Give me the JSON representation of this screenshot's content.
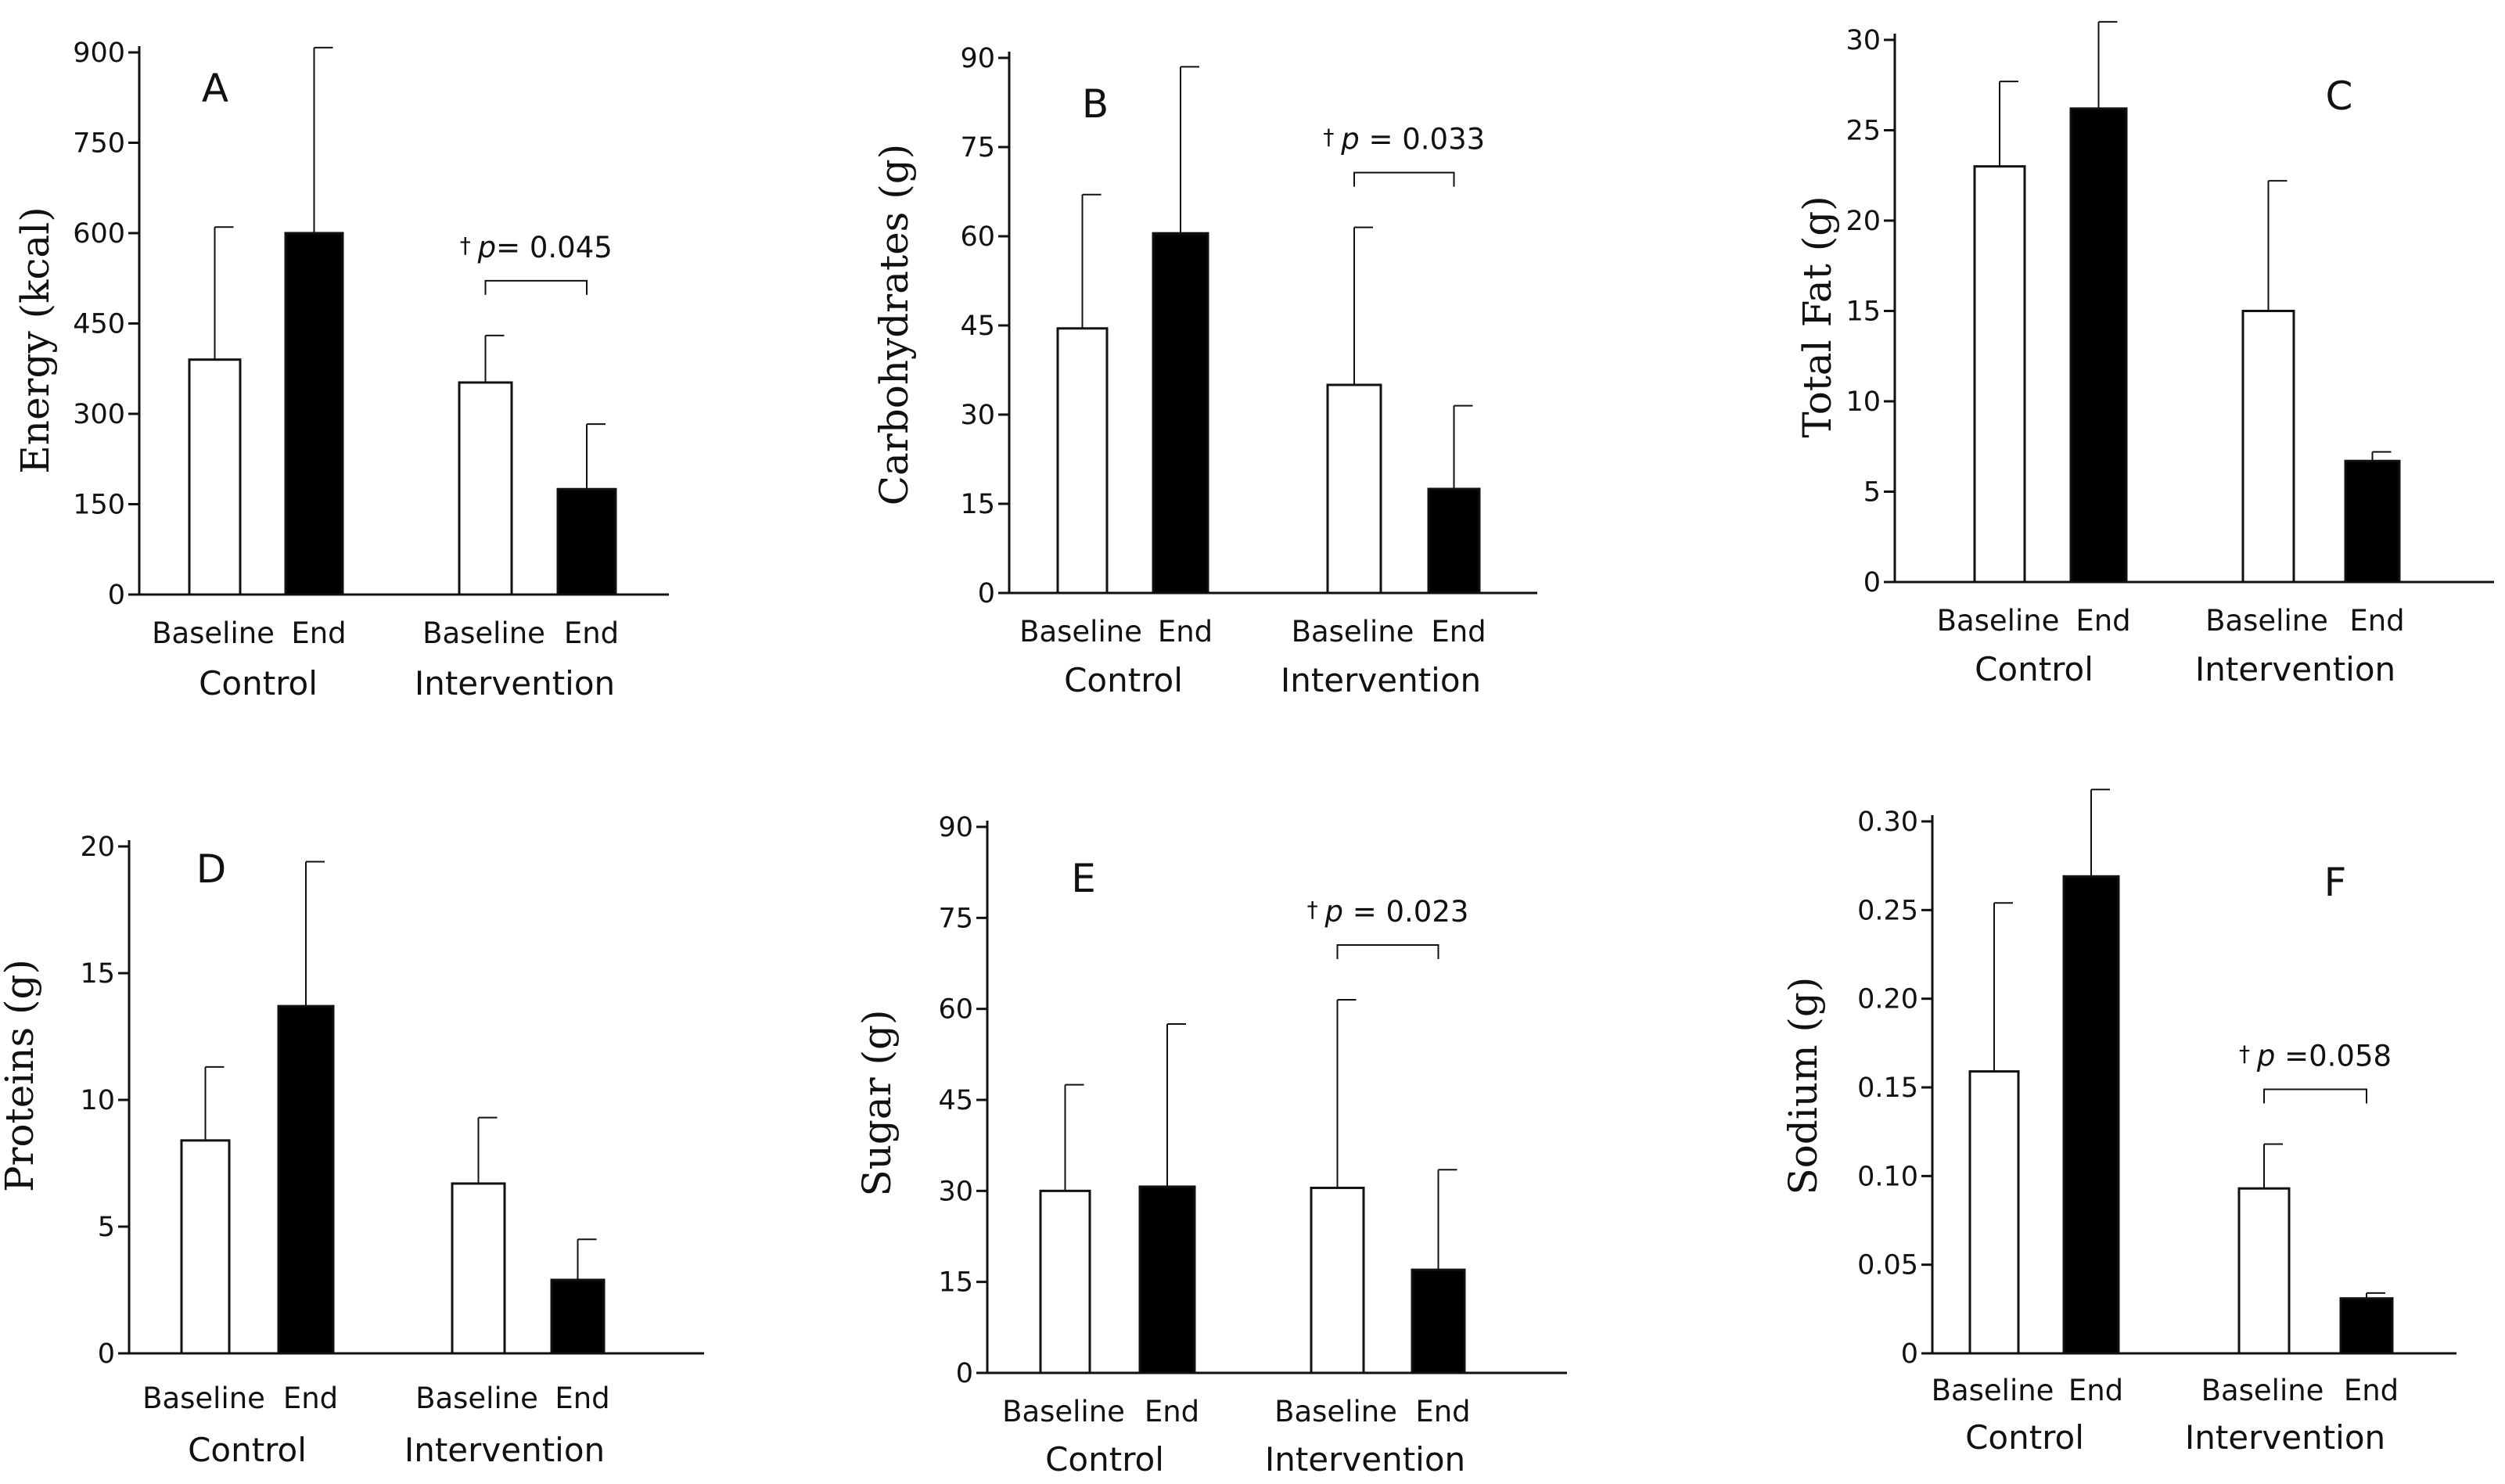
{
  "figure": {
    "x_tick_labels": [
      "Baseline",
      "End",
      "Baseline",
      "End"
    ],
    "group_labels": [
      "Control",
      "Intervention"
    ]
  },
  "chart_data": [
    {
      "type": "bar",
      "panel": "A",
      "ylabel": "Energy (kcal)",
      "ylim": [
        0,
        900
      ],
      "yticks": [
        0,
        150,
        300,
        450,
        600,
        750,
        900
      ],
      "ytick_labels": [
        "0",
        "150",
        "300",
        "450",
        "600",
        "750",
        "900"
      ],
      "categories": [
        "Baseline",
        "End",
        "Baseline",
        "End"
      ],
      "groups": [
        "Control",
        "Intervention"
      ],
      "values": [
        390,
        600,
        352,
        175
      ],
      "error_upper": [
        610,
        908,
        430,
        283
      ],
      "fill": [
        "#ffffff",
        "#000000",
        "#ffffff",
        "#000000"
      ],
      "annotation": {
        "dagger": "†",
        "p_label": "p",
        "value_text": "= 0.045",
        "between": [
          2,
          3
        ]
      }
    },
    {
      "type": "bar",
      "panel": "B",
      "ylabel": "Carbohydrates (g)",
      "ylim": [
        0,
        90
      ],
      "yticks": [
        0,
        15,
        30,
        45,
        60,
        75,
        90
      ],
      "ytick_labels": [
        "0",
        "15",
        "30",
        "45",
        "60",
        "75",
        "90"
      ],
      "categories": [
        "Baseline",
        "End",
        "Baseline",
        "End"
      ],
      "groups": [
        "Control",
        "Intervention"
      ],
      "values": [
        44.5,
        60.5,
        35,
        17.5
      ],
      "error_upper": [
        67,
        88.5,
        61.5,
        31.5
      ],
      "fill": [
        "#ffffff",
        "#000000",
        "#ffffff",
        "#000000"
      ],
      "annotation": {
        "dagger": "†",
        "p_label": "p",
        "value_text": " = 0.033",
        "between": [
          2,
          3
        ]
      }
    },
    {
      "type": "bar",
      "panel": "C",
      "ylabel": "Total Fat (g)",
      "ylim": [
        0,
        30
      ],
      "yticks": [
        0,
        5,
        10,
        15,
        20,
        25,
        30
      ],
      "ytick_labels": [
        "0",
        "5",
        "10",
        "15",
        "20",
        "25",
        "30"
      ],
      "categories": [
        "Baseline",
        "End",
        "Baseline",
        "End"
      ],
      "groups": [
        "Control",
        "Intervention"
      ],
      "values": [
        23,
        26.2,
        15,
        6.7
      ],
      "error_upper": [
        27.7,
        31,
        22.2,
        7.2
      ],
      "fill": [
        "#ffffff",
        "#000000",
        "#ffffff",
        "#000000"
      ],
      "annotation": null
    },
    {
      "type": "bar",
      "panel": "D",
      "ylabel": "Proteins (g)",
      "ylim": [
        0,
        20
      ],
      "yticks": [
        0,
        5,
        10,
        15,
        20
      ],
      "ytick_labels": [
        "0",
        "5",
        "10",
        "15",
        "20"
      ],
      "categories": [
        "Baseline",
        "End",
        "Baseline",
        "End"
      ],
      "groups": [
        "Control",
        "Intervention"
      ],
      "values": [
        8.4,
        13.7,
        6.7,
        2.9
      ],
      "error_upper": [
        11.3,
        19.4,
        9.3,
        4.5
      ],
      "fill": [
        "#ffffff",
        "#000000",
        "#ffffff",
        "#000000"
      ],
      "annotation": null
    },
    {
      "type": "bar",
      "panel": "E",
      "ylabel": "Sugar (g)",
      "ylim": [
        0,
        90
      ],
      "yticks": [
        0,
        15,
        30,
        45,
        60,
        75,
        90
      ],
      "ytick_labels": [
        "0",
        "15",
        "30",
        "45",
        "60",
        "75",
        "90"
      ],
      "categories": [
        "Baseline",
        "End",
        "Baseline",
        "End"
      ],
      "groups": [
        "Control",
        "Intervention"
      ],
      "values": [
        30,
        30.7,
        30.5,
        17
      ],
      "error_upper": [
        47.5,
        57.5,
        61.5,
        33.5
      ],
      "fill": [
        "#ffffff",
        "#000000",
        "#ffffff",
        "#000000"
      ],
      "annotation": {
        "dagger": "†",
        "p_label": "p",
        "value_text": " = 0.023",
        "between": [
          2,
          3
        ]
      }
    },
    {
      "type": "bar",
      "panel": "F",
      "ylabel": "Sodium (g)",
      "ylim": [
        0,
        0.3
      ],
      "yticks": [
        0,
        0.05,
        0.1,
        0.15,
        0.2,
        0.25,
        0.3
      ],
      "ytick_labels": [
        "0",
        "0.05",
        "0.10",
        "0.15",
        "0.20",
        "0.25",
        "0.30"
      ],
      "categories": [
        "Baseline",
        "End",
        "Baseline",
        "End"
      ],
      "groups": [
        "Control",
        "Intervention"
      ],
      "values": [
        0.159,
        0.269,
        0.093,
        0.031
      ],
      "error_upper": [
        0.254,
        0.318,
        0.118,
        0.034
      ],
      "fill": [
        "#ffffff",
        "#000000",
        "#ffffff",
        "#000000"
      ],
      "annotation": {
        "dagger": "†",
        "p_label": "p",
        "value_text": " =0.058",
        "between": [
          2,
          3
        ]
      }
    }
  ]
}
